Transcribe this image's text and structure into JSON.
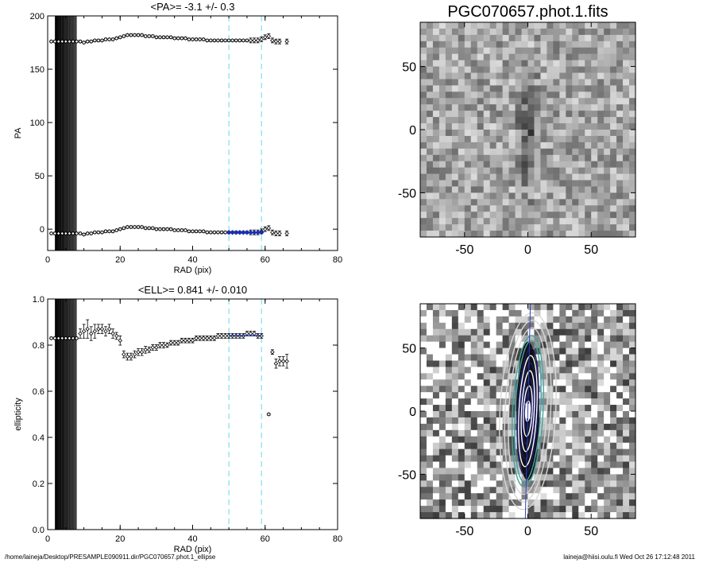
{
  "footer": {
    "path": "/home/laineja/Desktop/PRESAMPLE090911.dir/PGC070657.phot.1_ellipse",
    "user_time": "laineja@hiisi.oulu.fi  Wed Oct 26 17:12:48 2011"
  },
  "chart_data": [
    {
      "type": "scatter",
      "title": "<PA>=  -3.1 +/-   0.3",
      "xlabel": "RAD (pix)",
      "ylabel": "PA",
      "xlim": [
        0,
        80
      ],
      "ylim": [
        -20,
        200
      ],
      "xticks": [
        "0",
        "20",
        "40",
        "60",
        "80"
      ],
      "yticks": [
        "0",
        "50",
        "100",
        "150",
        "200"
      ],
      "vlines": [
        50,
        59
      ],
      "colors": {
        "points": "#000000",
        "fit": "#1a2fb0",
        "vline": "#7fe0ee"
      },
      "series": [
        {
          "points_upper": [
            [
              1,
              176
            ],
            [
              2,
              176
            ],
            [
              3,
              176
            ],
            [
              4,
              176
            ],
            [
              5,
              176
            ],
            [
              6,
              176
            ],
            [
              7,
              176
            ],
            [
              8,
              176
            ],
            [
              9,
              176
            ],
            [
              10,
              175
            ],
            [
              11,
              176
            ],
            [
              12,
              176
            ],
            [
              13,
              177
            ],
            [
              14,
              177
            ],
            [
              15,
              177
            ],
            [
              16,
              178
            ],
            [
              17,
              178
            ],
            [
              18,
              178
            ],
            [
              19,
              179
            ],
            [
              20,
              180
            ],
            [
              21,
              181
            ],
            [
              22,
              182
            ],
            [
              23,
              182
            ],
            [
              24,
              182
            ],
            [
              25,
              182
            ],
            [
              26,
              182
            ],
            [
              27,
              181
            ],
            [
              28,
              181
            ],
            [
              29,
              181
            ],
            [
              30,
              180
            ],
            [
              31,
              180
            ],
            [
              32,
              180
            ],
            [
              33,
              180
            ],
            [
              34,
              180
            ],
            [
              35,
              179
            ],
            [
              36,
              179
            ],
            [
              37,
              179
            ],
            [
              38,
              179
            ],
            [
              39,
              178
            ],
            [
              40,
              178
            ],
            [
              41,
              178
            ],
            [
              42,
              178
            ],
            [
              43,
              178
            ],
            [
              44,
              177
            ],
            [
              45,
              177
            ],
            [
              46,
              177
            ],
            [
              47,
              177
            ],
            [
              48,
              177
            ],
            [
              49,
              177
            ],
            [
              50,
              177
            ],
            [
              51,
              177
            ],
            [
              52,
              177
            ],
            [
              53,
              177
            ],
            [
              54,
              177
            ],
            [
              55,
              177
            ],
            [
              56,
              177
            ],
            [
              57,
              177
            ],
            [
              58,
              177
            ],
            [
              59,
              178
            ],
            [
              60,
              180
            ],
            [
              61,
              181
            ],
            [
              62,
              177
            ],
            [
              63,
              176
            ],
            [
              64,
              176
            ],
            [
              66,
              176
            ]
          ],
          "points_lower": [
            [
              1,
              -4
            ],
            [
              2,
              -4
            ],
            [
              3,
              -4
            ],
            [
              4,
              -4
            ],
            [
              5,
              -4
            ],
            [
              6,
              -4
            ],
            [
              7,
              -4
            ],
            [
              8,
              -4
            ],
            [
              9,
              -4
            ],
            [
              10,
              -5
            ],
            [
              11,
              -4
            ],
            [
              12,
              -4
            ],
            [
              13,
              -3
            ],
            [
              14,
              -3
            ],
            [
              15,
              -3
            ],
            [
              16,
              -2
            ],
            [
              17,
              -2
            ],
            [
              18,
              -2
            ],
            [
              19,
              -1
            ],
            [
              20,
              0
            ],
            [
              21,
              1
            ],
            [
              22,
              2
            ],
            [
              23,
              2
            ],
            [
              24,
              2
            ],
            [
              25,
              2
            ],
            [
              26,
              2
            ],
            [
              27,
              1
            ],
            [
              28,
              1
            ],
            [
              29,
              1
            ],
            [
              30,
              0
            ],
            [
              31,
              0
            ],
            [
              32,
              0
            ],
            [
              33,
              0
            ],
            [
              34,
              0
            ],
            [
              35,
              -1
            ],
            [
              36,
              -1
            ],
            [
              37,
              -1
            ],
            [
              38,
              -1
            ],
            [
              39,
              -2
            ],
            [
              40,
              -2
            ],
            [
              41,
              -2
            ],
            [
              42,
              -2
            ],
            [
              43,
              -2
            ],
            [
              44,
              -3
            ],
            [
              45,
              -3
            ],
            [
              46,
              -3
            ],
            [
              47,
              -3
            ],
            [
              48,
              -3
            ],
            [
              49,
              -3
            ],
            [
              50,
              -3
            ],
            [
              51,
              -3
            ],
            [
              52,
              -3
            ],
            [
              53,
              -3
            ],
            [
              54,
              -3
            ],
            [
              55,
              -3
            ],
            [
              56,
              -3
            ],
            [
              57,
              -3
            ],
            [
              58,
              -3
            ],
            [
              59,
              -2
            ],
            [
              60,
              0
            ],
            [
              61,
              1
            ],
            [
              62,
              -3
            ],
            [
              63,
              -4
            ],
            [
              64,
              -4
            ],
            [
              66,
              -4
            ]
          ],
          "fit_points": [
            [
              50,
              -3.1
            ],
            [
              51,
              -3.1
            ],
            [
              52,
              -3.1
            ],
            [
              53,
              -3.1
            ],
            [
              54,
              -3.1
            ],
            [
              55,
              -3.1
            ],
            [
              56,
              -3.1
            ],
            [
              57,
              -3.1
            ],
            [
              58,
              -3.1
            ],
            [
              59,
              -3.1
            ]
          ]
        }
      ]
    },
    {
      "type": "scatter",
      "title": "<ELL>= 0.841 +/-  0.010",
      "xlabel": "RAD (pix)",
      "ylabel": "ellipticity",
      "xlim": [
        0,
        80
      ],
      "ylim": [
        0.0,
        1.0
      ],
      "xticks": [
        "0",
        "20",
        "40",
        "60",
        "80"
      ],
      "yticks": [
        "0.0",
        "0.2",
        "0.4",
        "0.6",
        "0.8",
        "1.0"
      ],
      "vlines": [
        50,
        59
      ],
      "fit_value": 0.841,
      "colors": {
        "points": "#000000",
        "fit": "#1a2fb0",
        "vline": "#7fe0ee"
      },
      "series": [
        {
          "points": [
            [
              1,
              0.83
            ],
            [
              2,
              0.83
            ],
            [
              3,
              0.83
            ],
            [
              4,
              0.83
            ],
            [
              5,
              0.83
            ],
            [
              6,
              0.83
            ],
            [
              7,
              0.83
            ],
            [
              8,
              0.83
            ],
            [
              9,
              0.85
            ],
            [
              10,
              0.86
            ],
            [
              11,
              0.87
            ],
            [
              12,
              0.85
            ],
            [
              13,
              0.86
            ],
            [
              14,
              0.87
            ],
            [
              15,
              0.87
            ],
            [
              16,
              0.86
            ],
            [
              17,
              0.87
            ],
            [
              18,
              0.85
            ],
            [
              19,
              0.84
            ],
            [
              20,
              0.82
            ],
            [
              21,
              0.76
            ],
            [
              22,
              0.75
            ],
            [
              23,
              0.75
            ],
            [
              24,
              0.76
            ],
            [
              25,
              0.77
            ],
            [
              26,
              0.77
            ],
            [
              27,
              0.78
            ],
            [
              28,
              0.78
            ],
            [
              29,
              0.79
            ],
            [
              30,
              0.79
            ],
            [
              31,
              0.8
            ],
            [
              32,
              0.8
            ],
            [
              33,
              0.8
            ],
            [
              34,
              0.81
            ],
            [
              35,
              0.81
            ],
            [
              36,
              0.81
            ],
            [
              37,
              0.82
            ],
            [
              38,
              0.82
            ],
            [
              39,
              0.82
            ],
            [
              40,
              0.82
            ],
            [
              41,
              0.83
            ],
            [
              42,
              0.83
            ],
            [
              43,
              0.83
            ],
            [
              44,
              0.83
            ],
            [
              45,
              0.83
            ],
            [
              46,
              0.83
            ],
            [
              47,
              0.84
            ],
            [
              48,
              0.84
            ],
            [
              49,
              0.84
            ],
            [
              50,
              0.84
            ],
            [
              51,
              0.84
            ],
            [
              52,
              0.84
            ],
            [
              53,
              0.84
            ],
            [
              54,
              0.84
            ],
            [
              55,
              0.85
            ],
            [
              56,
              0.85
            ],
            [
              57,
              0.85
            ],
            [
              58,
              0.84
            ],
            [
              59,
              0.84
            ],
            [
              61,
              0.5
            ],
            [
              62,
              0.77
            ],
            [
              63,
              0.72
            ],
            [
              64,
              0.73
            ],
            [
              65,
              0.73
            ],
            [
              66,
              0.73
            ]
          ],
          "errors": [
            0.005,
            0.005,
            0.005,
            0.005,
            0.005,
            0.005,
            0.005,
            0.005,
            0.02,
            0.03,
            0.04,
            0.03,
            0.03,
            0.02,
            0.02,
            0.02,
            0.02,
            0.02,
            0.015,
            0.02,
            0.015,
            0.015,
            0.015,
            0.015,
            0.015,
            0.015,
            0.015,
            0.012,
            0.012,
            0.012,
            0.012,
            0.012,
            0.01,
            0.01,
            0.01,
            0.01,
            0.01,
            0.01,
            0.01,
            0.01,
            0.01,
            0.01,
            0.01,
            0.01,
            0.01,
            0.01,
            0.01,
            0.01,
            0.01,
            0.01,
            0.01,
            0.01,
            0.01,
            0.01,
            0.01,
            0.01,
            0.01,
            0.01,
            0.01,
            0.005,
            0.01,
            0.02,
            0.02,
            0.02,
            0.03
          ]
        }
      ]
    },
    {
      "type": "heatmap",
      "title": "PGC070657.phot.1.fits",
      "xlim": [
        -85,
        85
      ],
      "ylim": [
        -85,
        85
      ],
      "xticks": [
        "-50",
        "0",
        "50"
      ],
      "yticks": [
        "-50",
        "0",
        "50"
      ],
      "colors": {
        "low": "#1e1e1e",
        "high": "#ffffff"
      }
    },
    {
      "type": "heatmap",
      "title": "",
      "xlim": [
        -85,
        85
      ],
      "ylim": [
        -85,
        85
      ],
      "xticks": [
        "-50",
        "0",
        "50"
      ],
      "yticks": [
        "-50",
        "0",
        "50"
      ],
      "colors": {
        "contour_inner": "#1a1a6e",
        "contour_mid": "#4aa3a0",
        "contour_outer": "#d8d8d8",
        "axis_line": "#3040c0"
      }
    }
  ]
}
